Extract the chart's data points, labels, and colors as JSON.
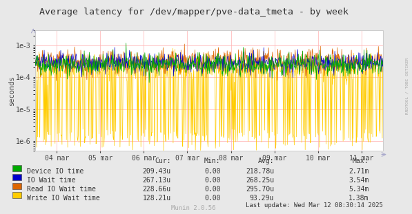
{
  "title": "Average latency for /dev/mapper/pve-data_tmeta - by week",
  "ylabel": "seconds",
  "xlabel_ticks": [
    "04 mar",
    "05 mar",
    "06 mar",
    "07 mar",
    "08 mar",
    "09 mar",
    "10 mar",
    "11 mar"
  ],
  "bg_color": "#e8e8e8",
  "plot_bg_color": "#ffffff",
  "grid_color": "#ffb0b0",
  "series_colors": {
    "device": "#00aa00",
    "io_wait": "#0000cc",
    "read_io": "#dd6600",
    "write_io": "#ffcc00"
  },
  "legend": [
    {
      "label": "Device IO time",
      "color": "#00aa00",
      "cur": "209.43u",
      "min": "0.00",
      "avg": "218.78u",
      "max": "2.71m"
    },
    {
      "label": "IO Wait time",
      "color": "#0000cc",
      "cur": "267.13u",
      "min": "0.00",
      "avg": "268.25u",
      "max": "3.54m"
    },
    {
      "label": "Read IO Wait time",
      "color": "#dd6600",
      "cur": "228.66u",
      "min": "0.00",
      "avg": "295.70u",
      "max": "5.34m"
    },
    {
      "label": "Write IO Wait time",
      "color": "#ffcc00",
      "cur": "128.21u",
      "min": "0.00",
      "avg": "93.29u",
      "max": "1.38m"
    }
  ],
  "last_update": "Last update: Wed Mar 12 08:30:14 2025",
  "munin_version": "Munin 2.0.56",
  "rrdtool_label": "RRDTOOL / TOBI OETIKER",
  "ylim_min": 5e-07,
  "ylim_max": 0.003,
  "num_points": 800
}
